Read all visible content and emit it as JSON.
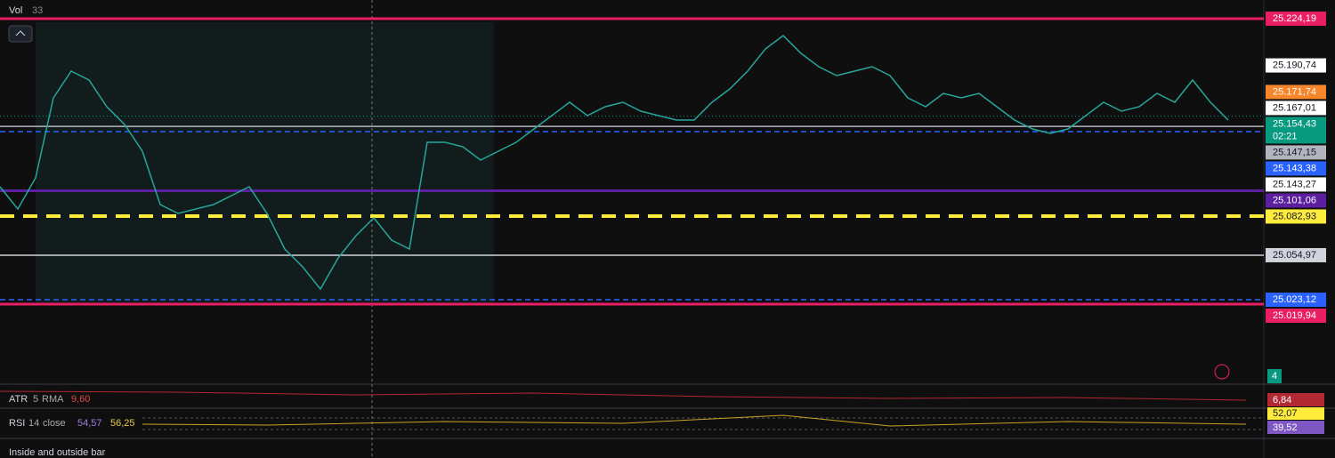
{
  "header": {
    "vol_label": "Vol",
    "vol_value": "33"
  },
  "levels": [
    {
      "value": 25224.19,
      "label": "25.224,19",
      "color": "#e91e63",
      "text_color": "#ffffff",
      "line": "solid-thick"
    },
    {
      "value": 25190.74,
      "label": "25.190,74",
      "color": "#ffffff",
      "text_color": "#131722",
      "line": "none"
    },
    {
      "value": 25171.74,
      "label": "25.171,74",
      "color": "#f7862b",
      "text_color": "#ffffff",
      "line": "none"
    },
    {
      "value": 25167.01,
      "label": "25.167,01",
      "color": "#ffffff",
      "text_color": "#131722",
      "line": "none"
    },
    {
      "value": 25154.43,
      "label": "25.154,43",
      "countdown": "02:21",
      "color": "#089981",
      "text_color": "#ffffff",
      "line": "dotted"
    },
    {
      "value": 25147.15,
      "label": "25.147,15",
      "color": "#b2b5be",
      "text_color": "#131722",
      "line": "solid"
    },
    {
      "value": 25143.38,
      "label": "25.143,38",
      "color": "#2962ff",
      "text_color": "#ffffff",
      "line": "dashed"
    },
    {
      "value": 25143.27,
      "label": "25.143,27",
      "color": "#ffffff",
      "text_color": "#131722",
      "line": "none"
    },
    {
      "value": 25101.06,
      "label": "25.101,06",
      "color": "#5b1fa0",
      "text_color": "#ffffff",
      "line": "solid-thick"
    },
    {
      "value": 25082.93,
      "label": "25.082,93",
      "color": "#ffeb3b",
      "text_color": "#131722",
      "line": "dashed-thick"
    },
    {
      "value": 25054.97,
      "label": "25.054,97",
      "color": "#d1d4dc",
      "text_color": "#131722",
      "line": "solid"
    },
    {
      "value": 25023.12,
      "label": "25.023,12",
      "color": "#2962ff",
      "text_color": "#ffffff",
      "line": "dashed"
    },
    {
      "value": 25019.94,
      "label": "25.019,94",
      "color": "#e91e63",
      "text_color": "#ffffff",
      "line": "solid-thick"
    }
  ],
  "price": {
    "color": "#26a69a",
    "closes": [
      25103.93,
      25088.02,
      25110.29,
      25167.56,
      25186.65,
      25180.29,
      25161.2,
      25148.47,
      25129.38,
      25091.2,
      25084.84,
      25088.02,
      25091.2,
      25097.57,
      25103.93,
      25084.84,
      25059.39,
      25046.66,
      25030.75,
      25053.03,
      25068.93,
      25081.66,
      25065.75,
      25059.39,
      25135.74,
      25135.74,
      25132.56,
      25123.02,
      25129.38,
      25135.74,
      25145.29,
      25154.83,
      25164.38,
      25154.83,
      25161.2,
      25164.38,
      25158.01,
      25154.83,
      25151.65,
      25151.65,
      25164.38,
      25173.92,
      25186.65,
      25202.56,
      25212.1,
      25199.37,
      25189.83,
      25183.47,
      25186.65,
      25189.83,
      25183.47,
      25167.56,
      25161.2,
      25170.74,
      25167.56,
      25170.74,
      25161.2,
      25151.65,
      25145.29,
      25142.11,
      25145.29,
      25154.83,
      25164.38,
      25158.01,
      25161.2,
      25170.74,
      25164.38,
      25180.29,
      25164.38,
      25151.65
    ]
  },
  "volume": {
    "axis_label": "4"
  },
  "atr": {
    "name": "ATR",
    "length": "5",
    "type": "RMA",
    "value": "9,60",
    "axis_label": "6,84"
  },
  "rsi": {
    "name": "RSI",
    "length": "14",
    "source": "close",
    "value_a": "54,57",
    "value_b": "56,25",
    "axis_labels": [
      "52,07",
      "39,52"
    ]
  },
  "footer": {
    "text": "Inside and outside bar"
  }
}
